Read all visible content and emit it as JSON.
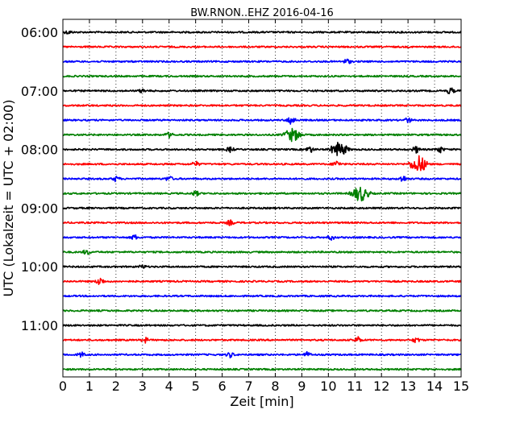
{
  "chart_data": {
    "type": "line",
    "title": "BW.RNON..EHZ 2016-04-16",
    "xlabel": "Zeit  [min]",
    "ylabel": "UTC (Lokalzeit = UTC + 02:00)",
    "xlim": [
      0,
      15
    ],
    "x_ticks": [
      "0",
      "1",
      "2",
      "3",
      "4",
      "5",
      "6",
      "7",
      "8",
      "9",
      "10",
      "11",
      "12",
      "13",
      "14",
      "15"
    ],
    "grid": "x-dotted",
    "row_interval_minutes": 15,
    "y_ticks": [
      {
        "label": "06:00",
        "row": 0
      },
      {
        "label": "07:00",
        "row": 4
      },
      {
        "label": "08:00",
        "row": 8
      },
      {
        "label": "09:00",
        "row": 12
      },
      {
        "label": "10:00",
        "row": 16
      },
      {
        "label": "11:00",
        "row": 20
      }
    ],
    "color_cycle": [
      "#000000",
      "#ff0000",
      "#0000ff",
      "#008000"
    ],
    "series": [
      {
        "start": "06:00",
        "events": [
          {
            "t": 0.2,
            "a": 2
          }
        ]
      },
      {
        "start": "06:15",
        "events": []
      },
      {
        "start": "06:30",
        "events": [
          {
            "t": 10.7,
            "a": 3
          }
        ]
      },
      {
        "start": "06:45",
        "events": []
      },
      {
        "start": "07:00",
        "events": [
          {
            "t": 3.0,
            "a": 2
          },
          {
            "t": 14.6,
            "a": 4
          }
        ]
      },
      {
        "start": "07:15",
        "events": []
      },
      {
        "start": "07:30",
        "events": [
          {
            "t": 8.6,
            "a": 6
          },
          {
            "t": 13.0,
            "a": 3
          }
        ]
      },
      {
        "start": "07:45",
        "events": [
          {
            "t": 4.0,
            "a": 3
          },
          {
            "t": 8.65,
            "a": 8
          }
        ]
      },
      {
        "start": "08:00",
        "events": [
          {
            "t": 6.3,
            "a": 3
          },
          {
            "t": 9.3,
            "a": 4
          },
          {
            "t": 10.4,
            "a": 9
          },
          {
            "t": 13.3,
            "a": 4
          },
          {
            "t": 14.2,
            "a": 4
          }
        ]
      },
      {
        "start": "08:15",
        "events": [
          {
            "t": 5.0,
            "a": 3
          },
          {
            "t": 10.3,
            "a": 4
          },
          {
            "t": 13.4,
            "a": 11
          }
        ]
      },
      {
        "start": "08:30",
        "events": [
          {
            "t": 2.0,
            "a": 3
          },
          {
            "t": 4.0,
            "a": 3
          },
          {
            "t": 12.8,
            "a": 4
          }
        ]
      },
      {
        "start": "08:45",
        "events": [
          {
            "t": 5.0,
            "a": 3
          },
          {
            "t": 11.2,
            "a": 10
          }
        ]
      },
      {
        "start": "09:00",
        "events": []
      },
      {
        "start": "09:15",
        "events": [
          {
            "t": 6.3,
            "a": 3
          }
        ]
      },
      {
        "start": "09:30",
        "events": [
          {
            "t": 2.7,
            "a": 3
          },
          {
            "t": 10.1,
            "a": 3
          }
        ]
      },
      {
        "start": "09:45",
        "events": [
          {
            "t": 0.9,
            "a": 3
          }
        ]
      },
      {
        "start": "10:00",
        "events": [
          {
            "t": 3.0,
            "a": 2
          }
        ]
      },
      {
        "start": "10:15",
        "events": [
          {
            "t": 1.4,
            "a": 5
          }
        ]
      },
      {
        "start": "10:30",
        "events": []
      },
      {
        "start": "10:45",
        "events": []
      },
      {
        "start": "11:00",
        "events": []
      },
      {
        "start": "11:15",
        "events": [
          {
            "t": 3.1,
            "a": 3
          },
          {
            "t": 11.1,
            "a": 4
          },
          {
            "t": 13.3,
            "a": 3
          }
        ]
      },
      {
        "start": "11:30",
        "events": [
          {
            "t": 0.7,
            "a": 3
          },
          {
            "t": 6.3,
            "a": 3
          },
          {
            "t": 9.2,
            "a": 3
          }
        ]
      },
      {
        "start": "11:45",
        "events": []
      }
    ]
  }
}
